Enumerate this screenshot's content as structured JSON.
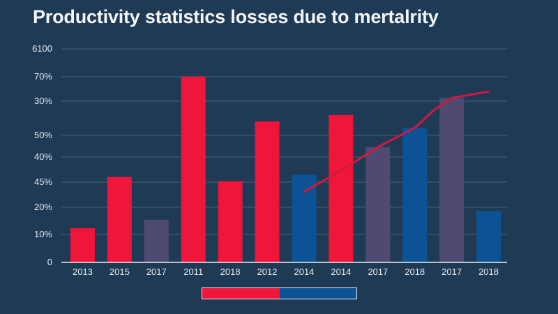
{
  "title": "Productivity statistics losses due to mertalrity",
  "colors": {
    "background": "#1f3a55",
    "grid": "#4a627a",
    "axis_text": "#e8ecf1",
    "red": "#f0153a",
    "blue": "#0b5394",
    "purple": "#4e4a72",
    "line": "#d2183f"
  },
  "legend": [
    {
      "label": "",
      "color": "#f0153a"
    },
    {
      "label": "",
      "color": "#0b5394"
    }
  ],
  "chart_data": {
    "type": "bar",
    "title": "Productivity statistics losses due to mertalrity",
    "xlabel": "",
    "ylabel": "",
    "grid": true,
    "legend_position": "bottom-center",
    "y_tick_labels": [
      "0",
      "10%",
      "20%",
      "45%",
      "40%",
      "50%",
      "30%",
      "70%",
      "6100"
    ],
    "ylim": [
      0,
      100
    ],
    "categories": [
      "2013",
      "2015",
      "2017",
      "2011",
      "2018",
      "2012",
      "2014",
      "2014",
      "2017",
      "2018",
      "2017",
      "2018"
    ],
    "values": [
      16,
      40,
      20,
      87,
      38,
      66,
      41,
      69,
      54,
      63,
      77,
      24
    ],
    "bar_colors": [
      "red",
      "red",
      "purple",
      "red",
      "red",
      "red",
      "blue",
      "red",
      "purple",
      "blue",
      "purple",
      "blue"
    ],
    "line_series": {
      "type": "line",
      "x_positions": [
        6.5,
        7.5,
        8.5,
        9.5,
        10.0,
        10.5,
        11.5
      ],
      "values": [
        33,
        43,
        54,
        63,
        71,
        77,
        80
      ]
    }
  }
}
